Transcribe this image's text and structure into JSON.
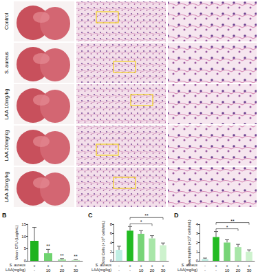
{
  "panel_a": {
    "rows": [
      "Control",
      "S. aureus",
      "LAA 10mg/kg",
      "LAA 20mg/kg",
      "LAA 30mg/kg"
    ]
  },
  "chart_data": [
    {
      "panel": "B",
      "type": "bar",
      "y_label": "Mean CFU (Log/mL)",
      "row_labels": [
        "S. aureus",
        "LAA(mg/kg)"
      ],
      "categories": [
        [
          "+",
          "-"
        ],
        [
          "+",
          "10"
        ],
        [
          "+",
          "20"
        ],
        [
          "+",
          "30"
        ]
      ],
      "values": [
        8.2,
        3.1,
        0.6,
        0.3
      ],
      "errors": [
        5.5,
        1.6,
        0.3,
        0.2
      ],
      "colors": [
        "#1db31d",
        "#6fd36f",
        "#a6e6a6",
        "#c8f0c8"
      ],
      "ylim": [
        0,
        15
      ],
      "yticks": [
        0,
        5,
        10,
        15
      ],
      "annotations": [
        {
          "bars": [
            1
          ],
          "text": "**"
        },
        {
          "bars": [
            2
          ],
          "text": "**"
        },
        {
          "bars": [
            3
          ],
          "text": "**"
        }
      ]
    },
    {
      "panel": "C",
      "type": "bar",
      "y_label": "Total Cells (×10⁵ cells/mL)",
      "row_labels": [
        "S. aureus",
        "LAA(mg/kg)"
      ],
      "categories": [
        [
          "-",
          "-"
        ],
        [
          "+",
          "-"
        ],
        [
          "+",
          "10"
        ],
        [
          "+",
          "20"
        ],
        [
          "+",
          "30"
        ]
      ],
      "values": [
        2.4,
        6.6,
        5.9,
        4.9,
        3.4
      ],
      "errors": [
        0.8,
        0.9,
        0.7,
        0.6,
        0.5
      ],
      "colors": [
        "#bfeee3",
        "#22bb22",
        "#77d477",
        "#a8e6a8",
        "#cdf2cd"
      ],
      "ylim": [
        0,
        8
      ],
      "yticks": [
        0,
        2,
        4,
        6,
        8
      ],
      "annotations": [
        {
          "bars": [
            1,
            3
          ],
          "text": "*"
        },
        {
          "bars": [
            1,
            4
          ],
          "text": "**"
        }
      ]
    },
    {
      "panel": "D",
      "type": "bar",
      "y_label": "Neutrophils (×10⁵ cells/mL)",
      "row_labels": [
        "S. aureus",
        "LAA(mg/kg)"
      ],
      "categories": [
        [
          "-",
          "-"
        ],
        [
          "+",
          "-"
        ],
        [
          "+",
          "10"
        ],
        [
          "+",
          "20"
        ],
        [
          "+",
          "30"
        ]
      ],
      "values": [
        0.2,
        2.6,
        2.0,
        1.5,
        1.0
      ],
      "errors": [
        0.1,
        0.6,
        0.3,
        0.3,
        0.2
      ],
      "colors": [
        "#bfeee3",
        "#22bb22",
        "#77d477",
        "#a8e6a8",
        "#cdf2cd"
      ],
      "ylim": [
        0,
        4
      ],
      "yticks": [
        0,
        1,
        2,
        3,
        4
      ],
      "annotations": [
        {
          "bars": [
            1,
            3
          ],
          "text": "*"
        },
        {
          "bars": [
            1,
            4
          ],
          "text": "**"
        }
      ]
    }
  ]
}
